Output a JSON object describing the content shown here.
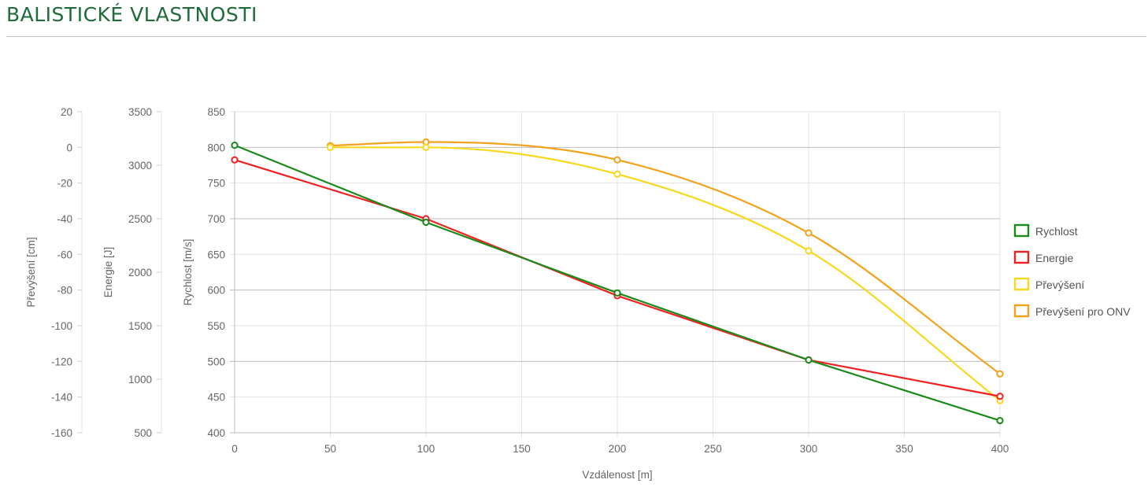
{
  "page": {
    "title": "BALISTICKÉ VLASTNOSTI"
  },
  "chart_data": {
    "type": "line",
    "x_axis": {
      "label": "Vzdálenost [m]",
      "min": 0,
      "max": 400,
      "ticks": [
        0,
        50,
        100,
        150,
        200,
        250,
        300,
        350,
        400
      ]
    },
    "y_axes": [
      {
        "id": "rychlost",
        "label": "Rychlost [m/s]",
        "min": 400,
        "max": 850,
        "ticks": [
          400,
          450,
          500,
          550,
          600,
          650,
          700,
          750,
          800,
          850
        ],
        "grid": true
      },
      {
        "id": "energie",
        "label": "Energie [J]",
        "min": 500,
        "max": 3500,
        "ticks": [
          500,
          1000,
          1500,
          2000,
          2500,
          3000,
          3500
        ],
        "grid": false
      },
      {
        "id": "prevyseni",
        "label": "Převýšení [cm]",
        "min": -160,
        "max": 20,
        "ticks": [
          -160,
          -140,
          -120,
          -100,
          -80,
          -60,
          -40,
          -20,
          0,
          20
        ],
        "grid": false
      }
    ],
    "series": [
      {
        "name": "Rychlost",
        "axis": "rychlost",
        "color": "#1a8a1a",
        "smooth": false,
        "x": [
          0,
          100,
          200,
          300,
          400
        ],
        "values": [
          803,
          695,
          596,
          502,
          417
        ]
      },
      {
        "name": "Energie",
        "axis": "energie",
        "color": "#ee2222",
        "smooth": false,
        "x": [
          0,
          100,
          200,
          300,
          400
        ],
        "values": [
          3050,
          2500,
          1780,
          1180,
          840
        ]
      },
      {
        "name": "Převýšení",
        "axis": "prevyseni",
        "color": "#f8d81c",
        "smooth": true,
        "x": [
          50,
          100,
          200,
          300,
          400
        ],
        "values": [
          0,
          0,
          -15,
          -58,
          -142
        ]
      },
      {
        "name": "Převýšení pro ONV",
        "axis": "prevyseni",
        "color": "#f4a21c",
        "smooth": true,
        "x": [
          50,
          100,
          200,
          300,
          400
        ],
        "values": [
          1,
          3,
          -7,
          -48,
          -127
        ]
      }
    ],
    "legend": {
      "placement": "right"
    }
  }
}
